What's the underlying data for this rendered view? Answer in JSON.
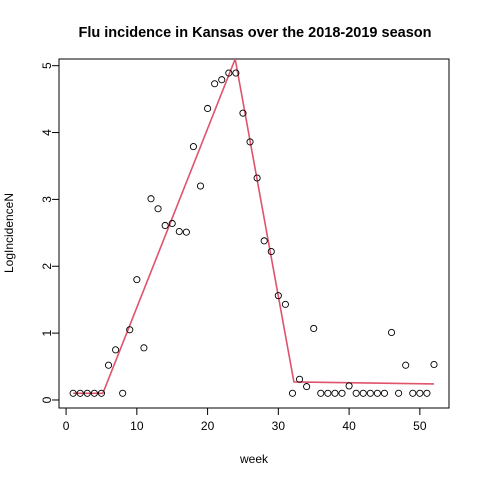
{
  "chart_data": {
    "type": "scatter",
    "title": "Flu incidence in Kansas over the 2018-2019 season",
    "xlabel": "week",
    "ylabel": "LogIncidenceN",
    "xlim": [
      -1,
      54.12
    ],
    "ylim": [
      -0.12,
      5.1
    ],
    "xticks": [
      0,
      10,
      20,
      30,
      40,
      50
    ],
    "yticks": [
      0,
      1,
      2,
      3,
      4,
      5
    ],
    "grid": false,
    "colors": {
      "points": "#000000",
      "fit_line": "#DF536B"
    },
    "points": {
      "x": [
        1,
        2,
        3,
        4,
        5,
        6,
        7,
        8,
        9,
        10,
        11,
        12,
        13,
        14,
        15,
        16,
        17,
        18,
        19,
        20,
        21,
        22,
        23,
        24,
        25,
        26,
        27,
        28,
        29,
        30,
        31,
        32,
        33,
        34,
        35,
        36,
        37,
        38,
        39,
        40,
        41,
        42,
        43,
        44,
        45,
        46,
        47,
        48,
        49,
        50,
        51,
        52
      ],
      "y": [
        0.1,
        0.1,
        0.1,
        0.1,
        0.1,
        0.52,
        0.75,
        0.1,
        1.05,
        1.8,
        0.78,
        3.01,
        2.86,
        2.61,
        2.64,
        2.52,
        2.51,
        3.79,
        3.2,
        4.36,
        4.73,
        4.79,
        4.89,
        4.89,
        4.29,
        3.86,
        3.32,
        2.38,
        2.22,
        1.56,
        1.43,
        0.1,
        0.31,
        0.2,
        1.07,
        0.1,
        0.1,
        0.1,
        0.1,
        0.21,
        0.1,
        0.1,
        0.1,
        0.1,
        0.1,
        1.01,
        0.1,
        0.52,
        0.1,
        0.1,
        0.1,
        0.53
      ]
    },
    "fit_line": {
      "x": [
        1,
        5.2,
        23.9,
        32.2,
        52
      ],
      "y": [
        0.1,
        0.1,
        5.1,
        0.27,
        0.24
      ]
    }
  }
}
